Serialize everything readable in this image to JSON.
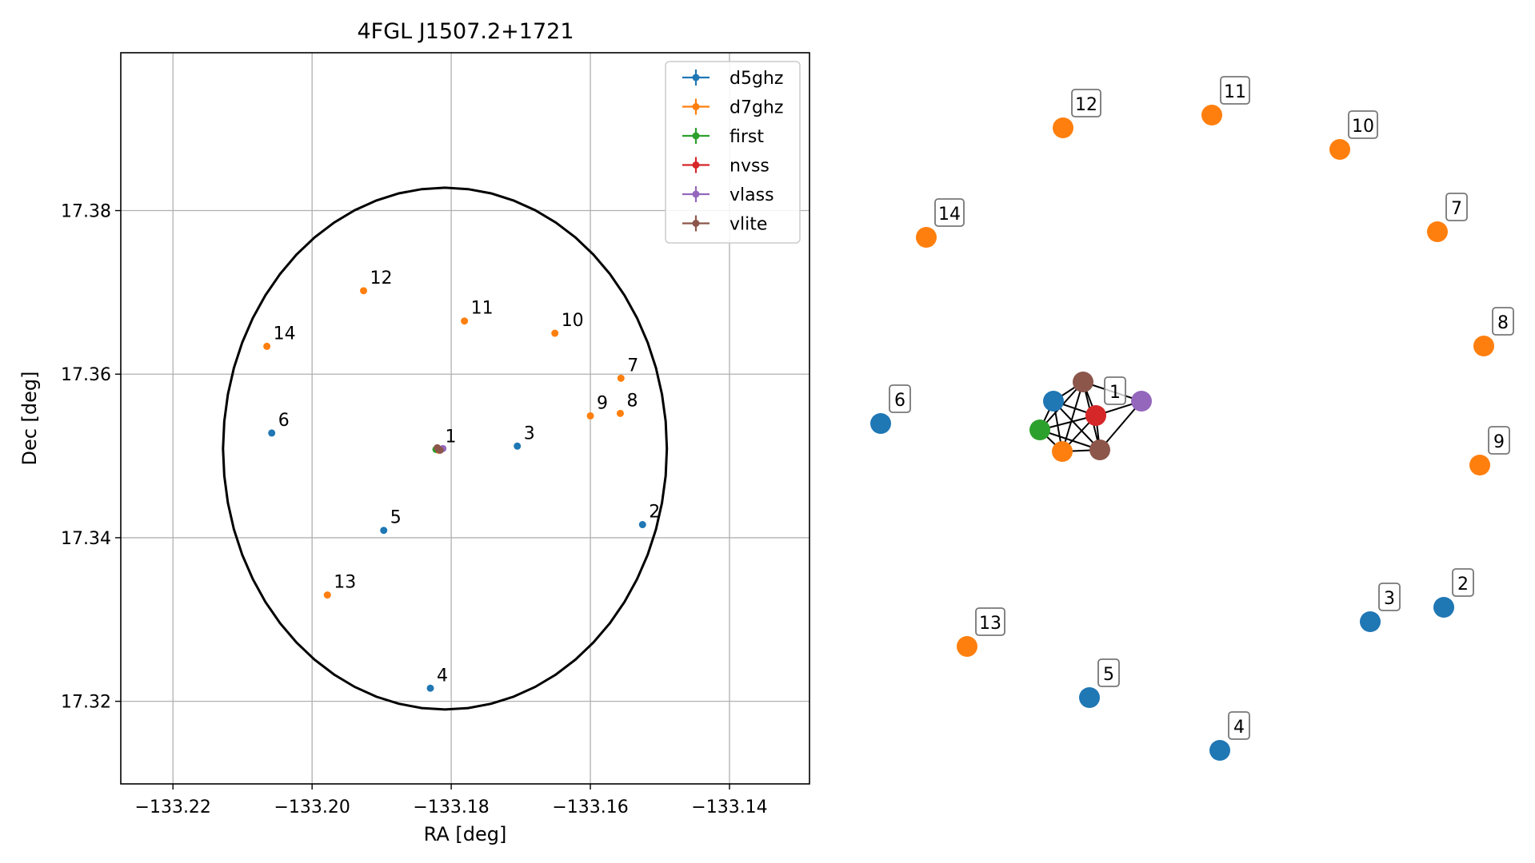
{
  "chart_data": [
    {
      "type": "scatter",
      "title": "4FGL J1507.2+1721",
      "xlabel": "RA [deg]",
      "ylabel": "Dec [deg]",
      "xlim": [
        -133.2275,
        -133.1285
      ],
      "ylim": [
        17.3099,
        17.3993
      ],
      "grid": true,
      "legend_placement": "top-right",
      "xticks": [
        -133.22,
        -133.2,
        -133.18,
        -133.16,
        -133.14
      ],
      "xtick_labels": [
        "−133.22",
        "−133.20",
        "−133.18",
        "−133.16",
        "−133.14"
      ],
      "yticks": [
        17.32,
        17.34,
        17.36,
        17.38
      ],
      "ytick_labels": [
        "17.32",
        "17.34",
        "17.36",
        "17.38"
      ],
      "circle": {
        "ra": -133.1809,
        "dec": 17.3509,
        "radius": 0.0319
      },
      "series": [
        {
          "name": "d5ghz",
          "color": "#1f77b4",
          "points": [
            {
              "label": "2",
              "ra": -133.1525,
              "dec": 17.3416
            },
            {
              "label": "3",
              "ra": -133.1705,
              "dec": 17.3512
            },
            {
              "label": "4",
              "ra": -133.183,
              "dec": 17.3216
            },
            {
              "label": "5",
              "ra": -133.1897,
              "dec": 17.3409
            },
            {
              "label": "6",
              "ra": -133.2058,
              "dec": 17.3528
            },
            {
              "label": "",
              "ra": -133.1818,
              "dec": 17.3508
            }
          ]
        },
        {
          "name": "d7ghz",
          "color": "#ff7f0e",
          "points": [
            {
              "label": "7",
              "ra": -133.1556,
              "dec": 17.3595
            },
            {
              "label": "8",
              "ra": -133.1557,
              "dec": 17.3552
            },
            {
              "label": "9",
              "ra": -133.16,
              "dec": 17.3549
            },
            {
              "label": "10",
              "ra": -133.1651,
              "dec": 17.365
            },
            {
              "label": "11",
              "ra": -133.1781,
              "dec": 17.3665
            },
            {
              "label": "12",
              "ra": -133.1926,
              "dec": 17.3702
            },
            {
              "label": "13",
              "ra": -133.1978,
              "dec": 17.333
            },
            {
              "label": "14",
              "ra": -133.2065,
              "dec": 17.3634
            },
            {
              "label": "",
              "ra": -133.1818,
              "dec": 17.3507
            }
          ]
        },
        {
          "name": "first",
          "color": "#2ca02c",
          "points": [
            {
              "label": "",
              "ra": -133.1822,
              "dec": 17.3508
            }
          ]
        },
        {
          "name": "nvss",
          "color": "#d62728",
          "points": [
            {
              "label": "1",
              "ra": -133.1818,
              "dec": 17.3508
            }
          ]
        },
        {
          "name": "vlass",
          "color": "#9467bd",
          "points": [
            {
              "label": "",
              "ra": -133.1812,
              "dec": 17.3509
            }
          ]
        },
        {
          "name": "vlite",
          "color": "#8c564b",
          "points": [
            {
              "label": "",
              "ra": -133.182,
              "dec": 17.351
            },
            {
              "label": "",
              "ra": -133.1816,
              "dec": 17.3507
            }
          ]
        }
      ]
    },
    {
      "type": "network",
      "nodes": [
        {
          "id": "1-d5ghz",
          "label": "",
          "color": "#1f77b4"
        },
        {
          "id": "1-vlite-a",
          "label": "",
          "color": "#8c564b"
        },
        {
          "id": "1-nvss",
          "label": "1",
          "color": "#d62728"
        },
        {
          "id": "1-vlass",
          "label": "",
          "color": "#9467bd"
        },
        {
          "id": "1-first",
          "label": "",
          "color": "#2ca02c"
        },
        {
          "id": "1-d7ghz",
          "label": "",
          "color": "#ff7f0e"
        },
        {
          "id": "1-vlite-b",
          "label": "",
          "color": "#8c564b"
        },
        {
          "id": "2",
          "label": "2",
          "color": "#1f77b4"
        },
        {
          "id": "3",
          "label": "3",
          "color": "#1f77b4"
        },
        {
          "id": "4",
          "label": "4",
          "color": "#1f77b4"
        },
        {
          "id": "5",
          "label": "5",
          "color": "#1f77b4"
        },
        {
          "id": "6",
          "label": "6",
          "color": "#1f77b4"
        },
        {
          "id": "7",
          "label": "7",
          "color": "#ff7f0e"
        },
        {
          "id": "8",
          "label": "8",
          "color": "#ff7f0e"
        },
        {
          "id": "9",
          "label": "9",
          "color": "#ff7f0e"
        },
        {
          "id": "10",
          "label": "10",
          "color": "#ff7f0e"
        },
        {
          "id": "11",
          "label": "11",
          "color": "#ff7f0e"
        },
        {
          "id": "12",
          "label": "12",
          "color": "#ff7f0e"
        },
        {
          "id": "13",
          "label": "13",
          "color": "#ff7f0e"
        },
        {
          "id": "14",
          "label": "14",
          "color": "#ff7f0e"
        }
      ],
      "edges": [
        [
          "1-d5ghz",
          "1-vlite-a"
        ],
        [
          "1-d5ghz",
          "1-nvss"
        ],
        [
          "1-d5ghz",
          "1-first"
        ],
        [
          "1-d5ghz",
          "1-d7ghz"
        ],
        [
          "1-d5ghz",
          "1-vlite-b"
        ],
        [
          "1-vlite-a",
          "1-nvss"
        ],
        [
          "1-vlite-a",
          "1-vlass"
        ],
        [
          "1-vlite-a",
          "1-first"
        ],
        [
          "1-vlite-a",
          "1-d7ghz"
        ],
        [
          "1-vlite-a",
          "1-vlite-b"
        ],
        [
          "1-nvss",
          "1-vlass"
        ],
        [
          "1-nvss",
          "1-first"
        ],
        [
          "1-nvss",
          "1-d7ghz"
        ],
        [
          "1-nvss",
          "1-vlite-b"
        ],
        [
          "1-vlass",
          "1-vlite-b"
        ],
        [
          "1-first",
          "1-d7ghz"
        ],
        [
          "1-first",
          "1-vlite-b"
        ],
        [
          "1-d7ghz",
          "1-vlite-b"
        ]
      ]
    }
  ]
}
